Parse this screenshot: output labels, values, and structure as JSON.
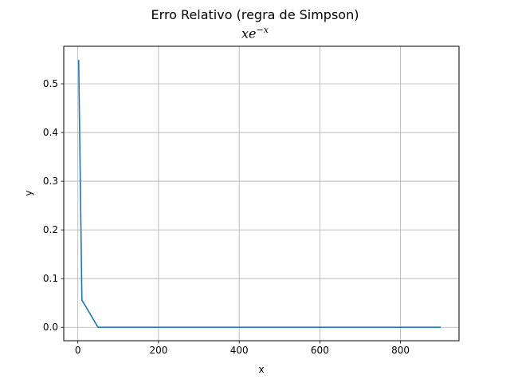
{
  "chart_data": {
    "type": "line",
    "title": "Erro Relativo (regra de Simpson)",
    "subtitle_base": "xe",
    "subtitle_sup": "−x",
    "xlabel": "x",
    "ylabel": "y",
    "xlim": [
      -35,
      945
    ],
    "ylim": [
      -0.0275,
      0.577
    ],
    "xticks": [
      0,
      200,
      400,
      600,
      800
    ],
    "yticks": [
      0.0,
      0.1,
      0.2,
      0.3,
      0.4,
      0.5
    ],
    "xtick_labels": [
      "0",
      "200",
      "400",
      "600",
      "800"
    ],
    "ytick_labels": [
      "0.0",
      "0.1",
      "0.2",
      "0.3",
      "0.4",
      "0.5"
    ],
    "grid": true,
    "series": [
      {
        "color": "#1f77b4",
        "x": [
          2,
          10,
          50,
          100,
          200,
          300,
          400,
          500,
          600,
          700,
          800,
          900
        ],
        "y": [
          0.549,
          0.056,
          0.0,
          0.0,
          0.0,
          0.0,
          0.0,
          0.0,
          0.0,
          0.0,
          0.0,
          0.0
        ]
      }
    ]
  }
}
